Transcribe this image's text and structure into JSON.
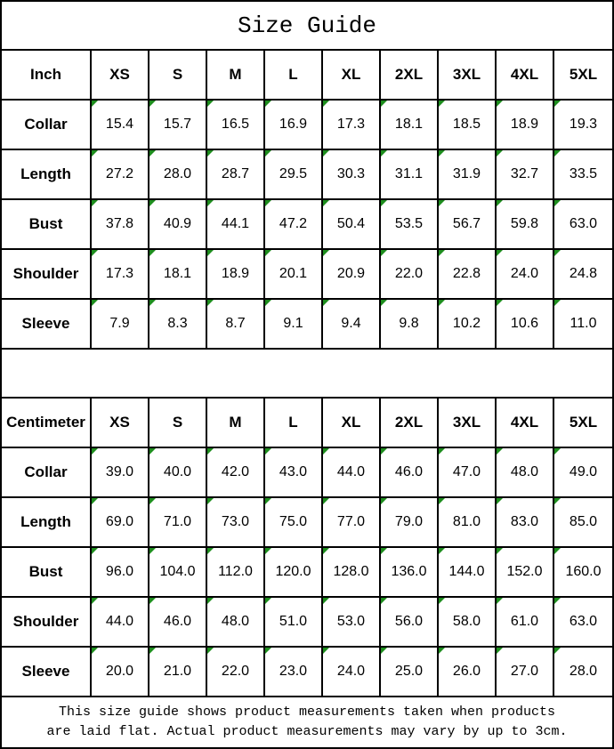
{
  "title": "Size Guide",
  "colors": {
    "indicator_green": "#1E8E1E",
    "border": "#000000",
    "background": "#ffffff",
    "text": "#000000"
  },
  "size_headers": [
    "XS",
    "S",
    "M",
    "L",
    "XL",
    "2XL",
    "3XL",
    "4XL",
    "5XL"
  ],
  "tables": [
    {
      "unit_label": "Inch",
      "rows": [
        {
          "label": "Collar",
          "values": [
            "15.4",
            "15.7",
            "16.5",
            "16.9",
            "17.3",
            "18.1",
            "18.5",
            "18.9",
            "19.3"
          ]
        },
        {
          "label": "Length",
          "values": [
            "27.2",
            "28.0",
            "28.7",
            "29.5",
            "30.3",
            "31.1",
            "31.9",
            "32.7",
            "33.5"
          ]
        },
        {
          "label": "Bust",
          "values": [
            "37.8",
            "40.9",
            "44.1",
            "47.2",
            "50.4",
            "53.5",
            "56.7",
            "59.8",
            "63.0"
          ]
        },
        {
          "label": "Shoulder",
          "values": [
            "17.3",
            "18.1",
            "18.9",
            "20.1",
            "20.9",
            "22.0",
            "22.8",
            "24.0",
            "24.8"
          ]
        },
        {
          "label": "Sleeve",
          "values": [
            "7.9",
            "8.3",
            "8.7",
            "9.1",
            "9.4",
            "9.8",
            "10.2",
            "10.6",
            "11.0"
          ]
        }
      ]
    },
    {
      "unit_label": "Centimeter",
      "rows": [
        {
          "label": "Collar",
          "values": [
            "39.0",
            "40.0",
            "42.0",
            "43.0",
            "44.0",
            "46.0",
            "47.0",
            "48.0",
            "49.0"
          ]
        },
        {
          "label": "Length",
          "values": [
            "69.0",
            "71.0",
            "73.0",
            "75.0",
            "77.0",
            "79.0",
            "81.0",
            "83.0",
            "85.0"
          ]
        },
        {
          "label": "Bust",
          "values": [
            "96.0",
            "104.0",
            "112.0",
            "120.0",
            "128.0",
            "136.0",
            "144.0",
            "152.0",
            "160.0"
          ]
        },
        {
          "label": "Shoulder",
          "values": [
            "44.0",
            "46.0",
            "48.0",
            "51.0",
            "53.0",
            "56.0",
            "58.0",
            "61.0",
            "63.0"
          ]
        },
        {
          "label": "Sleeve",
          "values": [
            "20.0",
            "21.0",
            "22.0",
            "23.0",
            "24.0",
            "25.0",
            "26.0",
            "27.0",
            "28.0"
          ]
        }
      ]
    }
  ],
  "footer": {
    "line1": "This size guide shows product measurements taken when products",
    "line2": "are laid flat. Actual product measurements may vary by up to 3cm."
  }
}
